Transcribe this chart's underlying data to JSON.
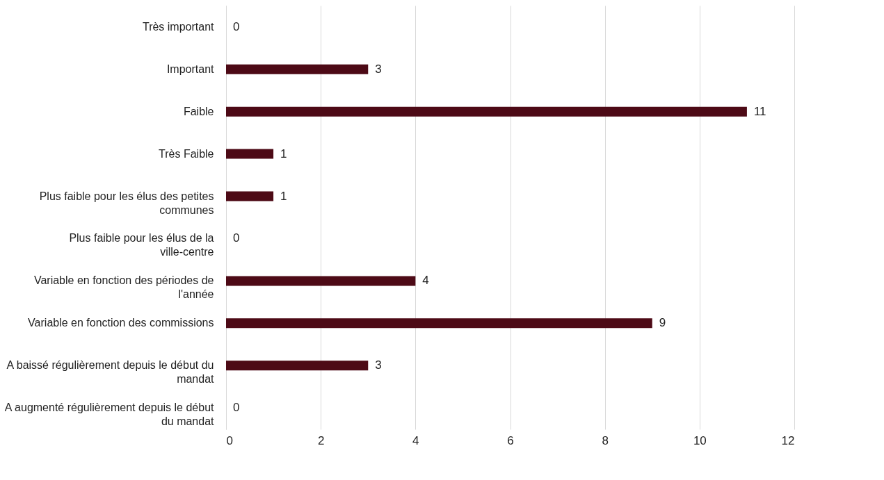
{
  "chart_data": {
    "type": "bar",
    "orientation": "horizontal",
    "categories": [
      "Très important",
      "Important",
      "Faible",
      "Très Faible",
      "Plus faible pour les élus des petites communes",
      "Plus faible pour les élus de la ville-centre",
      "Variable en fonction des périodes de l'année",
      "Variable en fonction des commissions",
      "A baissé régulièrement depuis le début du mandat",
      "A augmenté régulièrement depuis le début du mandat"
    ],
    "values": [
      0,
      3,
      11,
      1,
      1,
      0,
      4,
      9,
      3,
      0
    ],
    "color": "#4d0a16",
    "xlim": [
      0,
      12
    ],
    "xticks": [
      0,
      2,
      4,
      6,
      8,
      10,
      12
    ],
    "grid": "x",
    "data_labels": true
  }
}
